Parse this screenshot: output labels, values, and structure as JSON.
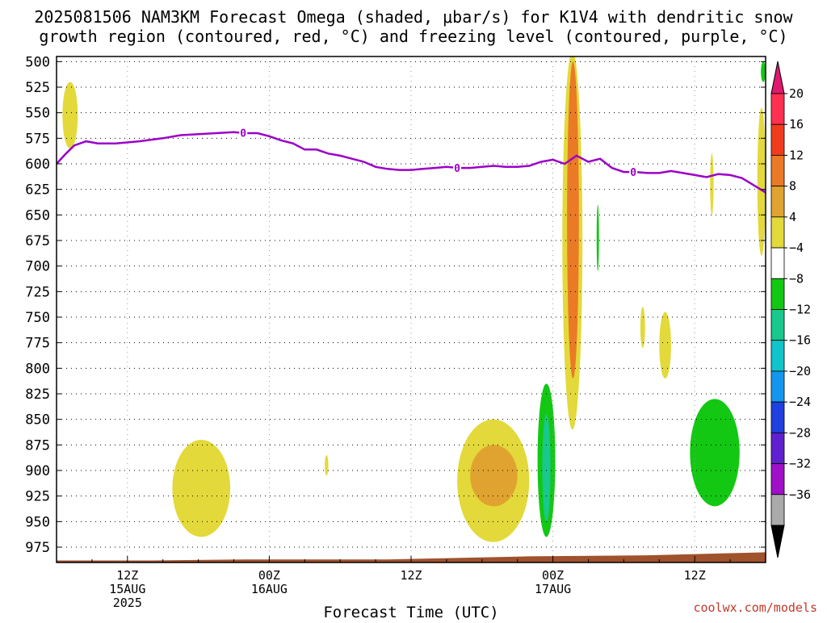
{
  "title_line1": "2025081506 NAM3KM Forecast Omega (shaded, μbar/s) for K1V4 with dendritic snow",
  "title_line2": "growth region (contoured, red, °C) and freezing level (contoured, purple, °C)",
  "credit": "coolwx.com/models",
  "colors": {
    "freezing_line": "#9b00c8",
    "ground": "#a0522d",
    "grid": "#000000"
  },
  "chart_data": {
    "type": "heatmap",
    "title": "2025081506 NAM3KM Forecast Omega (shaded, μbar/s) for K1V4 with dendritic snow growth region (contoured, red, °C) and freezing level (contoured, purple, °C)",
    "xlabel": "Forecast Time (UTC)",
    "ylabel": "",
    "x_unit": "forecast hour from 2025-08-15 06Z",
    "xlim": [
      0,
      60
    ],
    "ylim_hpa": [
      990,
      495
    ],
    "y_ticks": [
      500,
      525,
      550,
      575,
      600,
      625,
      650,
      675,
      700,
      725,
      750,
      775,
      800,
      825,
      850,
      875,
      900,
      925,
      950,
      975
    ],
    "x_ticks": [
      {
        "hour": 6,
        "lines": [
          "12Z",
          "15AUG",
          "2025"
        ]
      },
      {
        "hour": 18,
        "lines": [
          "00Z",
          "16AUG"
        ]
      },
      {
        "hour": 30,
        "lines": [
          "12Z"
        ]
      },
      {
        "hour": 42,
        "lines": [
          "00Z",
          "17AUG"
        ]
      },
      {
        "hour": 54,
        "lines": [
          "12Z"
        ]
      }
    ],
    "colorbar": {
      "labels": [
        "20",
        "16",
        "12",
        "8",
        "4",
        "−4",
        "−8",
        "−12",
        "−16",
        "−20",
        "−24",
        "−28",
        "−32",
        "−36"
      ],
      "colors": [
        "#ff3050",
        "#f03c1e",
        "#ea7a25",
        "#e0a330",
        "#e3d93a",
        "#ffffff",
        "#12c812",
        "#18c88c",
        "#10c4cc",
        "#1496ee",
        "#2040e0",
        "#6020d0",
        "#a010c8",
        "#aaaaaa"
      ],
      "top_arrow": "#e0186e",
      "bottom_arrow": "#000000"
    },
    "freezing_level": {
      "label": "0",
      "label_hours": [
        15.8,
        33.9,
        48.8
      ],
      "points": [
        [
          0,
          600
        ],
        [
          0.8,
          590
        ],
        [
          1.5,
          582
        ],
        [
          2.5,
          578
        ],
        [
          3.5,
          580
        ],
        [
          5,
          580
        ],
        [
          7,
          578
        ],
        [
          9,
          575
        ],
        [
          10.5,
          572
        ],
        [
          12,
          571
        ],
        [
          13.5,
          570
        ],
        [
          15,
          569
        ],
        [
          16,
          570
        ],
        [
          17,
          570
        ],
        [
          18,
          573
        ],
        [
          19,
          577
        ],
        [
          20,
          580
        ],
        [
          21,
          586
        ],
        [
          22,
          586
        ],
        [
          23,
          590
        ],
        [
          24,
          592
        ],
        [
          25,
          595
        ],
        [
          26,
          598
        ],
        [
          27,
          603
        ],
        [
          28,
          605
        ],
        [
          29,
          606
        ],
        [
          30,
          606
        ],
        [
          31,
          605
        ],
        [
          32,
          604
        ],
        [
          33,
          603
        ],
        [
          34,
          604
        ],
        [
          35,
          604
        ],
        [
          36,
          603
        ],
        [
          37,
          602
        ],
        [
          38,
          603
        ],
        [
          39,
          603
        ],
        [
          40,
          602
        ],
        [
          41,
          598
        ],
        [
          42,
          596
        ],
        [
          43,
          600
        ],
        [
          44,
          592
        ],
        [
          45,
          598
        ],
        [
          46,
          595
        ],
        [
          47,
          604
        ],
        [
          48,
          608
        ],
        [
          49,
          608
        ],
        [
          50,
          609
        ],
        [
          51,
          609
        ],
        [
          52,
          607
        ],
        [
          53,
          609
        ],
        [
          54,
          611
        ],
        [
          55,
          613
        ],
        [
          56,
          610
        ],
        [
          57,
          611
        ],
        [
          58,
          614
        ],
        [
          59,
          621
        ],
        [
          60,
          628
        ]
      ]
    },
    "shaded_regions": [
      {
        "value": 6,
        "hours": [
          0.5,
          1.8
        ],
        "hpa": [
          520,
          585
        ]
      },
      {
        "value": 5,
        "hours": [
          9.8,
          14.7
        ],
        "hpa": [
          870,
          965
        ]
      },
      {
        "value": 5,
        "hours": [
          22.7,
          23.0
        ],
        "hpa": [
          885,
          905
        ]
      },
      {
        "value": 6,
        "hours": [
          33.9,
          40.0
        ],
        "hpa": [
          850,
          970
        ]
      },
      {
        "value": 10,
        "hours": [
          35.0,
          39.0
        ],
        "hpa": [
          875,
          935
        ]
      },
      {
        "value": 6,
        "hours": [
          42.8,
          44.5
        ],
        "hpa": [
          490,
          860
        ]
      },
      {
        "value": 12,
        "hours": [
          43.2,
          44.2
        ],
        "hpa": [
          500,
          810
        ]
      },
      {
        "value": -6,
        "hours": [
          45.7,
          45.9
        ],
        "hpa": [
          640,
          705
        ]
      },
      {
        "value": -6,
        "hours": [
          40.7,
          42.2
        ],
        "hpa": [
          815,
          965
        ]
      },
      {
        "value": -10,
        "hours": [
          41.1,
          41.8
        ],
        "hpa": [
          845,
          950
        ]
      },
      {
        "value": 5,
        "hours": [
          49.4,
          49.8
        ],
        "hpa": [
          740,
          780
        ]
      },
      {
        "value": 5,
        "hours": [
          51.0,
          52.0
        ],
        "hpa": [
          745,
          810
        ]
      },
      {
        "value": 5,
        "hours": [
          55.3,
          55.6
        ],
        "hpa": [
          590,
          650
        ]
      },
      {
        "value": -6,
        "hours": [
          53.6,
          57.8
        ],
        "hpa": [
          830,
          935
        ]
      },
      {
        "value": 6,
        "hours": [
          59.3,
          60.0
        ],
        "hpa": [
          545,
          690
        ]
      },
      {
        "value": -6,
        "hours": [
          59.6,
          60.0
        ],
        "hpa": [
          500,
          520
        ]
      }
    ],
    "ground_hpa": [
      [
        0,
        988
      ],
      [
        8,
        988
      ],
      [
        16,
        987
      ],
      [
        28,
        987
      ],
      [
        40,
        984
      ],
      [
        50,
        983
      ],
      [
        60,
        980
      ]
    ]
  }
}
